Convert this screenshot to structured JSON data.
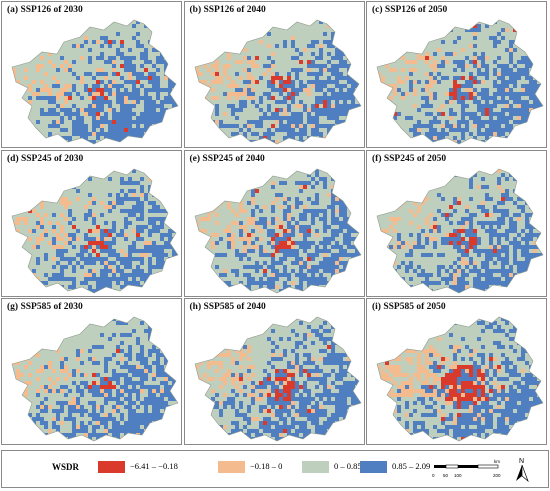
{
  "colors": {
    "class1": "#d93a2b",
    "class2": "#f4bb8f",
    "class3": "#bfcfbd",
    "class4": "#4f7fc0"
  },
  "panels": [
    {
      "title": "(a) SSP126 of 2030",
      "scenario": "SSP126",
      "year": 2030,
      "orange_level": 0.45,
      "red_level": 0.3
    },
    {
      "title": "(b) SSP126 of 2040",
      "scenario": "SSP126",
      "year": 2040,
      "orange_level": 0.5,
      "red_level": 0.4
    },
    {
      "title": "(c) SSP126 of 2050",
      "scenario": "SSP126",
      "year": 2050,
      "orange_level": 0.45,
      "red_level": 0.45
    },
    {
      "title": "(d) SSP245 of 2030",
      "scenario": "SSP245",
      "year": 2030,
      "orange_level": 0.45,
      "red_level": 0.3
    },
    {
      "title": "(e) SSP245 of 2040",
      "scenario": "SSP245",
      "year": 2040,
      "orange_level": 0.5,
      "red_level": 0.4
    },
    {
      "title": "(f) SSP245 of 2050",
      "scenario": "SSP245",
      "year": 2050,
      "orange_level": 0.45,
      "red_level": 0.45
    },
    {
      "title": "(g) SSP585 of 2030",
      "scenario": "SSP585",
      "year": 2030,
      "orange_level": 0.45,
      "red_level": 0.3
    },
    {
      "title": "(h) SSP585 of 2040",
      "scenario": "SSP585",
      "year": 2040,
      "orange_level": 0.55,
      "red_level": 0.55
    },
    {
      "title": "(i) SSP585 of 2050",
      "scenario": "SSP585",
      "year": 2050,
      "orange_level": 0.85,
      "red_level": 1.0
    }
  ],
  "legend": {
    "title": "WSDR",
    "classes": [
      {
        "label": "−6.41 – −0.18",
        "color": "#d93a2b"
      },
      {
        "label": "−0.18 – 0",
        "color": "#f4bb8f"
      },
      {
        "label": "0 – 0.85",
        "color": "#bfcfbd"
      },
      {
        "label": "0.85 – 2.09",
        "color": "#4f7fc0"
      }
    ],
    "scale": {
      "ticks": [
        "0",
        "50",
        "100",
        "200"
      ],
      "unit": "km"
    },
    "north": "N"
  }
}
